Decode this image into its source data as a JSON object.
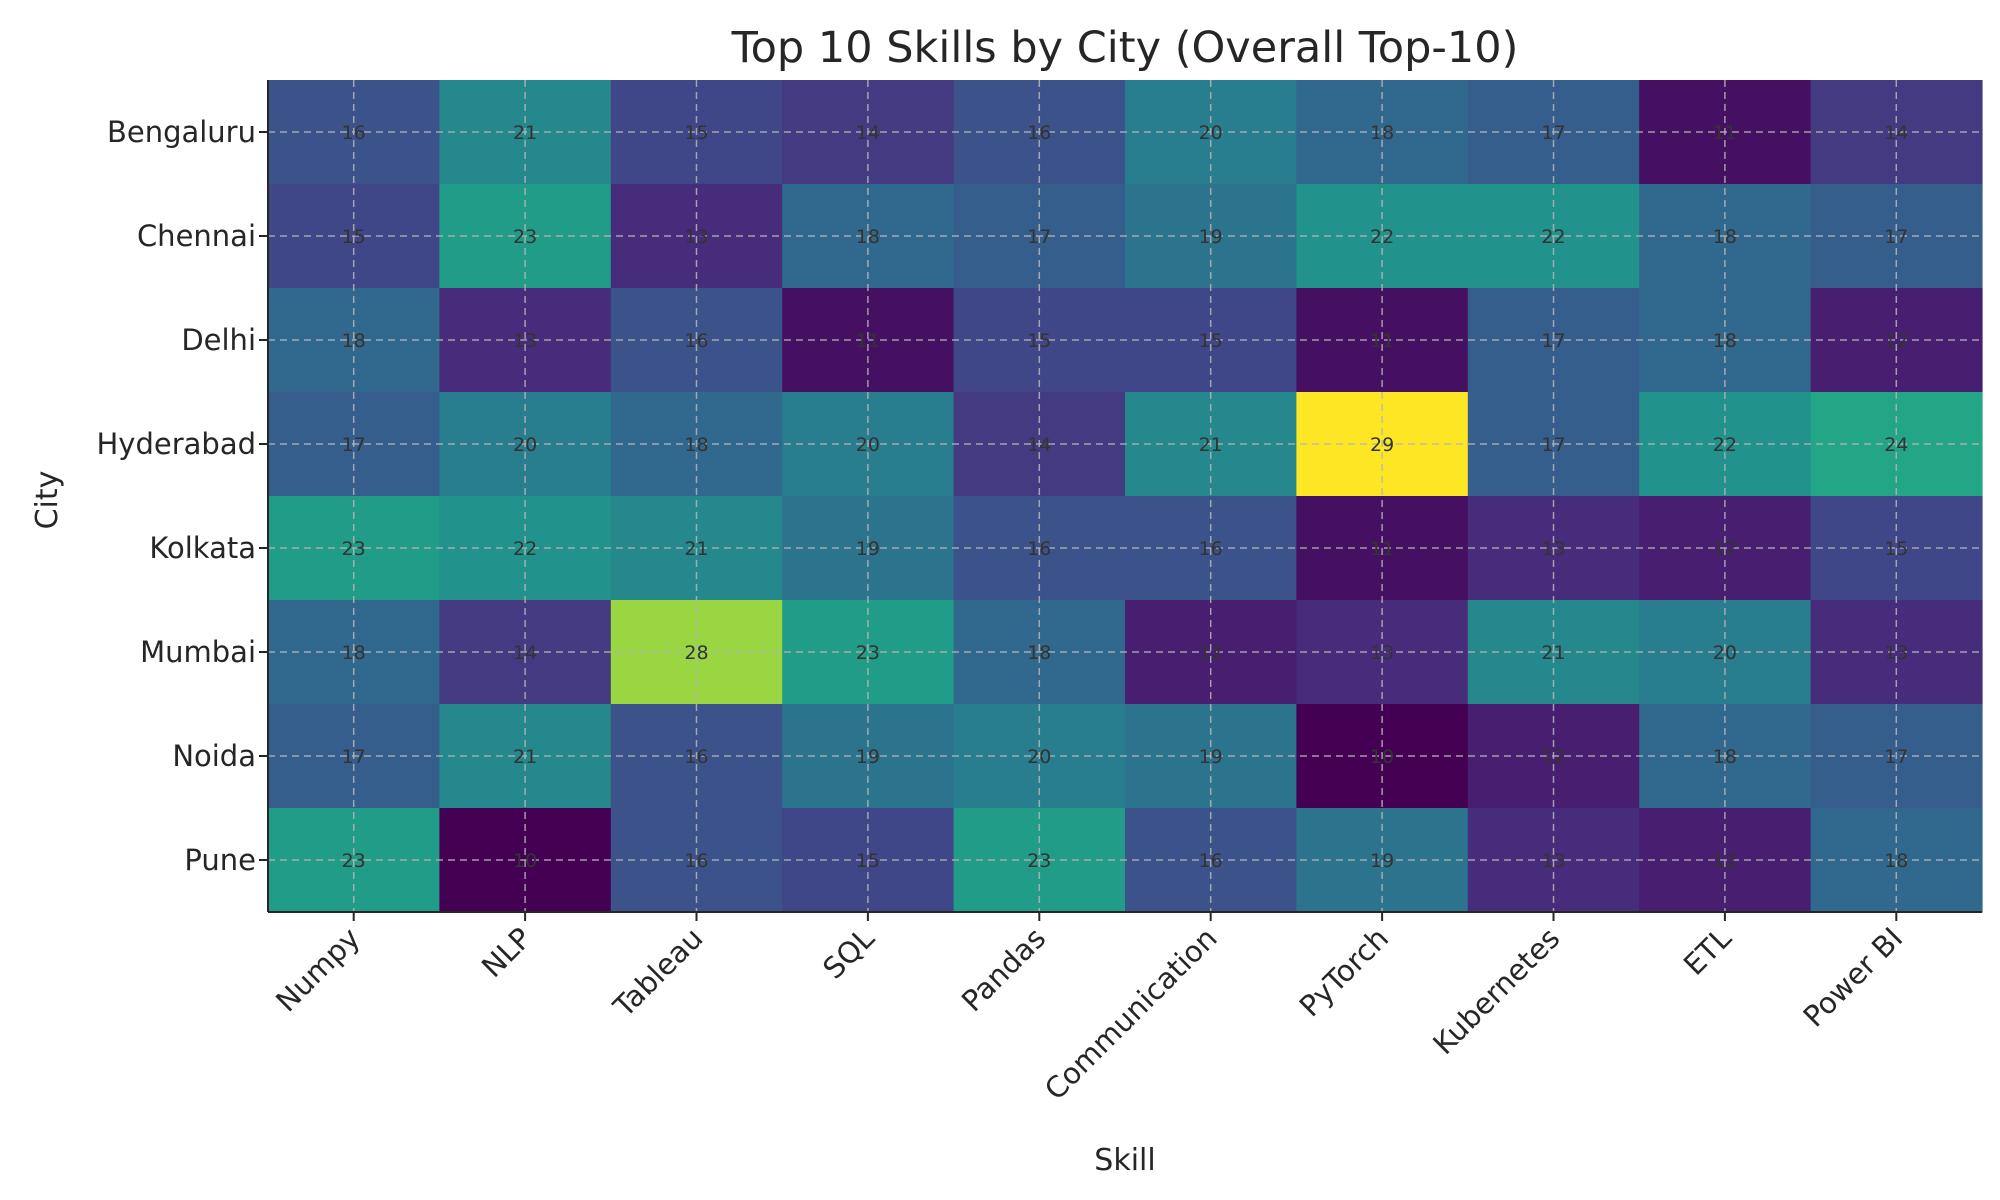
{
  "chart_data": {
    "type": "heatmap",
    "title": "Top 10 Skills by City (Overall Top-10)",
    "xlabel": "Skill",
    "ylabel": "City",
    "x_categories": [
      "Numpy",
      "NLP",
      "Tableau",
      "SQL",
      "Pandas",
      "Communication",
      "PyTorch",
      "Kubernetes",
      "ETL",
      "Power BI"
    ],
    "y_categories": [
      "Bengaluru",
      "Chennai",
      "Delhi",
      "Hyderabad",
      "Kolkata",
      "Mumbai",
      "Noida",
      "Pune"
    ],
    "values": [
      [
        16,
        21,
        15,
        14,
        16,
        20,
        18,
        17,
        11,
        14
      ],
      [
        15,
        23,
        13,
        18,
        17,
        19,
        22,
        22,
        18,
        17
      ],
      [
        18,
        13,
        16,
        11,
        15,
        15,
        11,
        17,
        18,
        12
      ],
      [
        17,
        20,
        18,
        20,
        14,
        21,
        29,
        17,
        22,
        24
      ],
      [
        23,
        22,
        21,
        19,
        16,
        16,
        11,
        13,
        12,
        15
      ],
      [
        18,
        14,
        28,
        23,
        18,
        12,
        13,
        21,
        20,
        13
      ],
      [
        17,
        21,
        16,
        19,
        20,
        19,
        10,
        12,
        18,
        17
      ],
      [
        23,
        10,
        16,
        15,
        23,
        16,
        19,
        13,
        12,
        18
      ]
    ],
    "colormap": "viridis",
    "value_range": [
      10,
      29
    ],
    "grid": true,
    "annotations": "cell values"
  }
}
